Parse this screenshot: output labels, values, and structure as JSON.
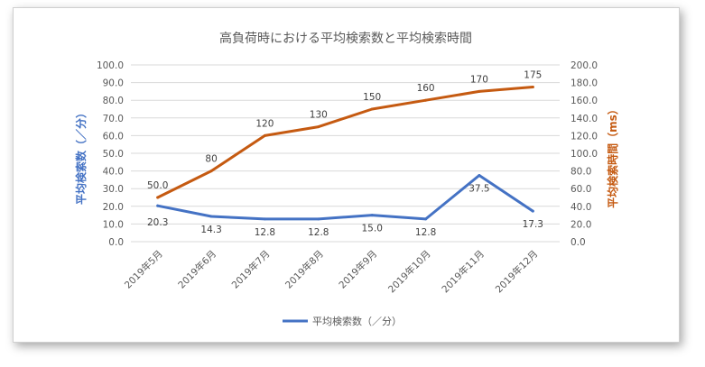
{
  "chart_data": {
    "type": "line",
    "title": "高負荷時における平均検索数と平均検索時間",
    "categories": [
      "2019年5月",
      "2019年6月",
      "2019年7月",
      "2019年8月",
      "2019年9月",
      "2019年10月",
      "2019年11月",
      "2019年12月"
    ],
    "series": [
      {
        "name": "平均検索数（／分）",
        "axis": "left",
        "color": "#4472c4",
        "values": [
          20.3,
          14.3,
          12.8,
          12.8,
          15.0,
          12.8,
          37.5,
          17.3
        ],
        "labels": [
          "20.3",
          "14.3",
          "12.8",
          "12.8",
          "15.0",
          "12.8",
          "37.5",
          "17.3"
        ]
      },
      {
        "axis": "right",
        "color": "#c55a11",
        "values": [
          50,
          80,
          120,
          130,
          150,
          160,
          170,
          175
        ],
        "labels": [
          "50.0",
          "80",
          "120",
          "130",
          "150",
          "160",
          "170",
          "175"
        ]
      }
    ],
    "y_left": {
      "label": "平均検索数（／分）",
      "ylim": [
        0,
        100
      ],
      "ticks": [
        "0.0",
        "10.0",
        "20.0",
        "30.0",
        "40.0",
        "50.0",
        "60.0",
        "70.0",
        "80.0",
        "90.0",
        "100.0"
      ]
    },
    "y_right": {
      "label": "平均検索時間（ms）",
      "ylim": [
        0,
        200
      ],
      "ticks": [
        "0.0",
        "20.0",
        "40.0",
        "60.0",
        "80.0",
        "100.0",
        "120.0",
        "140.0",
        "160.0",
        "180.0",
        "200.0"
      ]
    },
    "grid": true,
    "legend": {
      "position": "bottom",
      "entries": [
        "平均検索数（／分）"
      ]
    }
  }
}
